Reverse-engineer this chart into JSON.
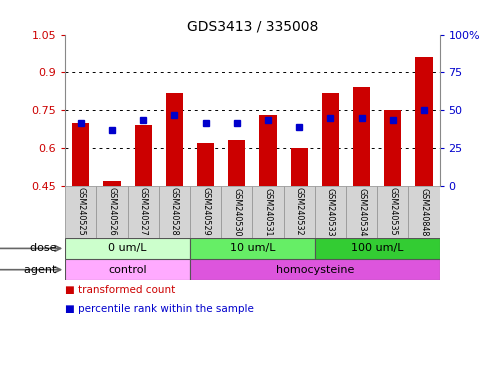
{
  "title": "GDS3413 / 335008",
  "samples": [
    "GSM240525",
    "GSM240526",
    "GSM240527",
    "GSM240528",
    "GSM240529",
    "GSM240530",
    "GSM240531",
    "GSM240532",
    "GSM240533",
    "GSM240534",
    "GSM240535",
    "GSM240848"
  ],
  "red_values": [
    0.7,
    0.47,
    0.69,
    0.82,
    0.62,
    0.63,
    0.73,
    0.6,
    0.82,
    0.84,
    0.75,
    0.96
  ],
  "blue_values": [
    0.7,
    0.67,
    0.71,
    0.73,
    0.7,
    0.7,
    0.71,
    0.685,
    0.72,
    0.72,
    0.71,
    0.75
  ],
  "ylim_left": [
    0.45,
    1.05
  ],
  "ylim_right": [
    0,
    100
  ],
  "yticks_left": [
    0.45,
    0.6,
    0.75,
    0.9,
    1.05
  ],
  "yticks_right": [
    0,
    25,
    50,
    75,
    100
  ],
  "ytick_labels_left": [
    "0.45",
    "0.6",
    "0.75",
    "0.9",
    "1.05"
  ],
  "ytick_labels_right": [
    "0",
    "25",
    "50",
    "75",
    "100%"
  ],
  "dose_groups": [
    {
      "label": "0 um/L",
      "start": 0,
      "end": 4,
      "color": "#ccffcc"
    },
    {
      "label": "10 um/L",
      "start": 4,
      "end": 8,
      "color": "#66ee66"
    },
    {
      "label": "100 um/L",
      "start": 8,
      "end": 12,
      "color": "#33cc33"
    }
  ],
  "agent_groups": [
    {
      "label": "control",
      "start": 0,
      "end": 4,
      "color": "#ffaaff"
    },
    {
      "label": "homocysteine",
      "start": 4,
      "end": 12,
      "color": "#dd55dd"
    }
  ],
  "legend_red_label": "transformed count",
  "legend_blue_label": "percentile rank within the sample",
  "red_color": "#cc0000",
  "blue_color": "#0000cc",
  "bar_baseline": 0.45,
  "bg_color": "#ffffff",
  "plot_bg": "#ffffff",
  "dose_label": "dose",
  "agent_label": "agent",
  "sample_box_color": "#d4d4d4",
  "sample_box_edge": "#999999"
}
